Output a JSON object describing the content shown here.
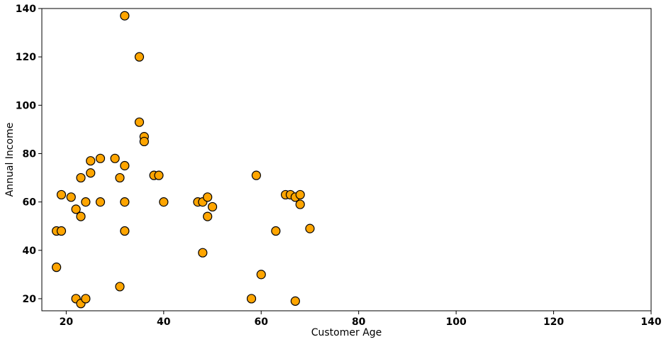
{
  "chart_data": {
    "type": "scatter",
    "title": "",
    "xlabel": "Customer Age",
    "ylabel": "Annual Income",
    "xlim": [
      15,
      140
    ],
    "ylim": [
      15,
      140
    ],
    "x_ticks": [
      20,
      40,
      60,
      80,
      100,
      120,
      140
    ],
    "y_ticks": [
      20,
      40,
      60,
      80,
      100,
      120,
      140
    ],
    "grid": false,
    "legend": "none",
    "marker_color": "#FFA500",
    "marker_edge_color": "#000000",
    "series": [
      {
        "points": [
          [
            18,
            48
          ],
          [
            18,
            33
          ],
          [
            19,
            48
          ],
          [
            19,
            63
          ],
          [
            21,
            62
          ],
          [
            22,
            57
          ],
          [
            22,
            20
          ],
          [
            23,
            70
          ],
          [
            23,
            54
          ],
          [
            23,
            18
          ],
          [
            24,
            60
          ],
          [
            24,
            20
          ],
          [
            25,
            77
          ],
          [
            25,
            72
          ],
          [
            27,
            78
          ],
          [
            27,
            60
          ],
          [
            30,
            78
          ],
          [
            31,
            70
          ],
          [
            31,
            25
          ],
          [
            32,
            137
          ],
          [
            32,
            75
          ],
          [
            32,
            60
          ],
          [
            32,
            48
          ],
          [
            35,
            120
          ],
          [
            35,
            93
          ],
          [
            36,
            87
          ],
          [
            36,
            85
          ],
          [
            38,
            71
          ],
          [
            39,
            71
          ],
          [
            40,
            60
          ],
          [
            47,
            60
          ],
          [
            48,
            60
          ],
          [
            48,
            39
          ],
          [
            49,
            62
          ],
          [
            49,
            54
          ],
          [
            50,
            58
          ],
          [
            58,
            20
          ],
          [
            59,
            71
          ],
          [
            60,
            30
          ],
          [
            63,
            48
          ],
          [
            65,
            63
          ],
          [
            66,
            63
          ],
          [
            67,
            62
          ],
          [
            67,
            19
          ],
          [
            68,
            63
          ],
          [
            68,
            59
          ],
          [
            70,
            49
          ]
        ]
      }
    ]
  }
}
